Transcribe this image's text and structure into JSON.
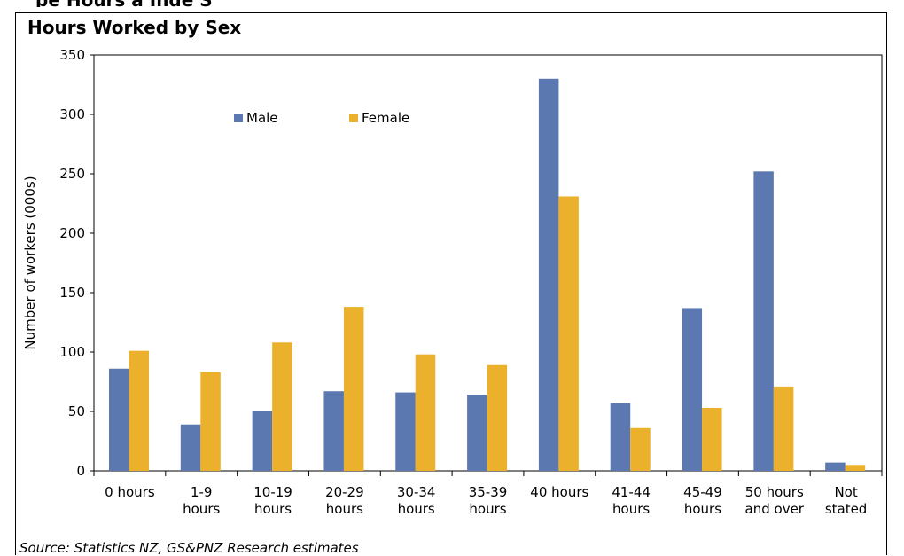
{
  "header_fragment": "pe Hours a Inde S",
  "chart_data": {
    "type": "bar",
    "title": "Hours Worked by Sex",
    "xlabel": "",
    "ylabel": "Number of workers (000s)",
    "ylim": [
      0,
      350
    ],
    "yticks": [
      0,
      50,
      100,
      150,
      200,
      250,
      300,
      350
    ],
    "grid": false,
    "legend_position": "top-left-inside",
    "categories": [
      [
        "0 hours"
      ],
      [
        "1-9",
        "hours"
      ],
      [
        "10-19",
        "hours"
      ],
      [
        "20-29",
        "hours"
      ],
      [
        "30-34",
        "hours"
      ],
      [
        "35-39",
        "hours"
      ],
      [
        "40 hours"
      ],
      [
        "41-44",
        "hours"
      ],
      [
        "45-49",
        "hours"
      ],
      [
        "50 hours",
        "and over"
      ],
      [
        "Not",
        "stated"
      ]
    ],
    "series": [
      {
        "name": "Male",
        "color": "#5b78b0",
        "values": [
          86,
          39,
          50,
          67,
          66,
          64,
          330,
          57,
          137,
          252,
          7
        ]
      },
      {
        "name": "Female",
        "color": "#ecb12c",
        "values": [
          101,
          83,
          108,
          138,
          98,
          89,
          231,
          36,
          53,
          71,
          5
        ]
      }
    ],
    "source": "Source: Statistics NZ, GS&PNZ Research estimates"
  }
}
